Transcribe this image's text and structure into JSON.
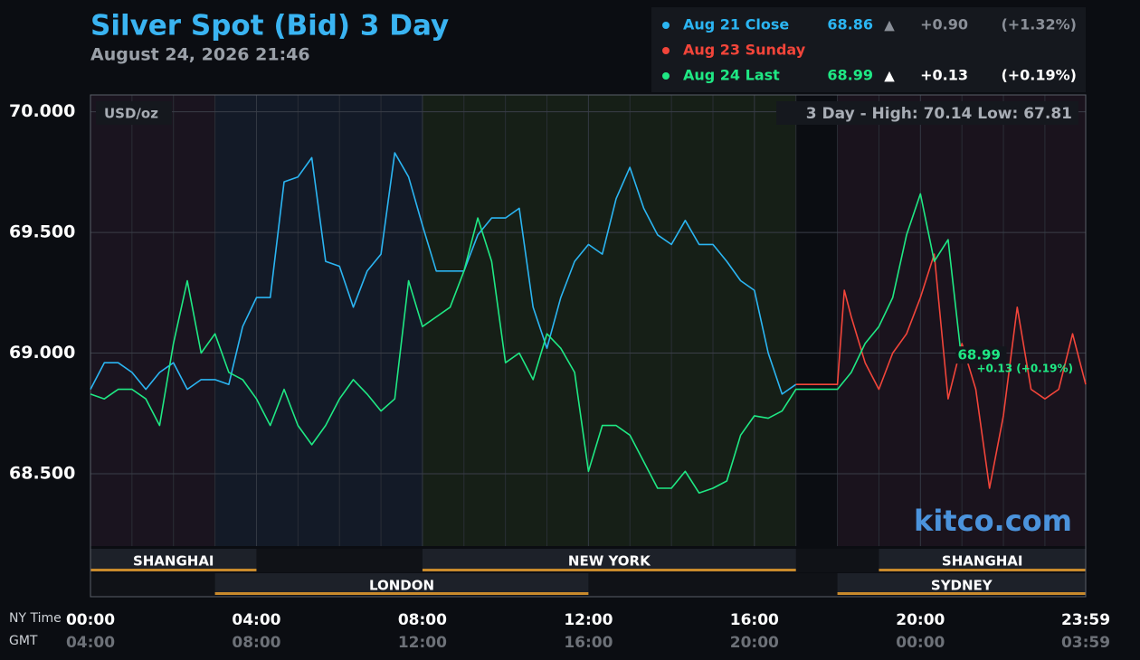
{
  "chart_data": {
    "type": "line",
    "title": "Silver Spot (Bid) 3 Day",
    "subtitle": "August 24, 2026 21:46",
    "y_unit": "USD/oz",
    "high_low": "3 Day - High: 70.14  Low: 67.81",
    "brand": "kitco.com",
    "last_change": "+0.13 (+0.19%)",
    "xlabel": "NY Time",
    "x2label": "GMT",
    "xlim": [
      0,
      1439
    ],
    "xticks": [
      {
        "value": 0,
        "label": "00:00"
      },
      {
        "value": 240,
        "label": "04:00"
      },
      {
        "value": 480,
        "label": "08:00"
      },
      {
        "value": 720,
        "label": "12:00"
      },
      {
        "value": 960,
        "label": "16:00"
      },
      {
        "value": 1200,
        "label": "20:00"
      },
      {
        "value": 1439,
        "label": "23:59"
      }
    ],
    "x2ticks": [
      {
        "value": 0,
        "label": "04:00"
      },
      {
        "value": 240,
        "label": "08:00"
      },
      {
        "value": 480,
        "label": "12:00"
      },
      {
        "value": 720,
        "label": "16:00"
      },
      {
        "value": 960,
        "label": "20:00"
      },
      {
        "value": 1200,
        "label": "00:00"
      },
      {
        "value": 1439,
        "label": "03:59"
      }
    ],
    "x_minor_ticks": [
      60,
      120,
      180,
      300,
      360,
      420,
      540,
      600,
      660,
      780,
      840,
      900,
      1020,
      1080,
      1140,
      1260,
      1320,
      1380
    ],
    "ylim": [
      68.2,
      70.07
    ],
    "yticks": [
      {
        "value": 70,
        "label": "70.000"
      },
      {
        "value": 69.5,
        "label": "69.500"
      },
      {
        "value": 69,
        "label": "69.000"
      },
      {
        "value": 68.5,
        "label": "68.500"
      }
    ],
    "grid": true,
    "regions": [
      {
        "start": 0,
        "end": 180,
        "color": "#1a141f"
      },
      {
        "start": 180,
        "end": 480,
        "color": "#131a27"
      },
      {
        "start": 480,
        "end": 1020,
        "color": "#161f17"
      },
      {
        "start": 1080,
        "end": 1439,
        "color": "#1a131d"
      }
    ],
    "sessions": {
      "upper": [
        {
          "name": "SHANGHAI",
          "start": 0,
          "end": 240
        },
        {
          "name": "NEW YORK",
          "start": 480,
          "end": 1020
        },
        {
          "name": "SHANGHAI",
          "start": 1140,
          "end": 1439
        }
      ],
      "lower": [
        {
          "name": "LONDON",
          "start": 180,
          "end": 720
        },
        {
          "name": "SYDNEY",
          "start": 1080,
          "end": 1439
        }
      ]
    },
    "session_color": "#c98a2c",
    "series": [
      {
        "name": "Aug 21 Close",
        "color": "#2bb5f2",
        "last": 68.86,
        "arrow": "▲",
        "change": "+0.90",
        "change_pct": "(+1.32%)",
        "change_color": "#8a8f98",
        "x": [
          0,
          20,
          40,
          60,
          80,
          100,
          120,
          140,
          160,
          180,
          200,
          220,
          240,
          260,
          280,
          300,
          320,
          340,
          360,
          380,
          400,
          420,
          440,
          460,
          480,
          500,
          520,
          540,
          560,
          580,
          600,
          620,
          640,
          660,
          680,
          700,
          720,
          740,
          760,
          780,
          800,
          820,
          840,
          860,
          880,
          900,
          920,
          940,
          960,
          980,
          1000,
          1020
        ],
        "values": [
          68.85,
          68.96,
          68.96,
          68.92,
          68.85,
          68.92,
          68.96,
          68.85,
          68.89,
          68.89,
          68.87,
          69.11,
          69.23,
          69.23,
          69.71,
          69.73,
          69.81,
          69.38,
          69.36,
          69.19,
          69.34,
          69.41,
          69.83,
          69.73,
          69.53,
          69.34,
          69.34,
          69.34,
          69.49,
          69.56,
          69.56,
          69.6,
          69.19,
          69.02,
          69.23,
          69.38,
          69.45,
          69.41,
          69.64,
          69.77,
          69.6,
          69.49,
          69.45,
          69.55,
          69.45,
          69.45,
          69.38,
          69.3,
          69.26,
          69.0,
          68.83,
          68.87
        ]
      },
      {
        "name": "Aug 23 Sunday",
        "color": "#f2453a",
        "x": [
          1020,
          1040,
          1060,
          1080,
          1090,
          1100,
          1120,
          1140,
          1160,
          1180,
          1200,
          1220,
          1240,
          1260,
          1280,
          1300,
          1320,
          1340,
          1360,
          1380,
          1400,
          1420,
          1439
        ],
        "values": [
          68.87,
          68.87,
          68.87,
          68.87,
          69.26,
          69.15,
          68.96,
          68.85,
          69.0,
          69.08,
          69.23,
          69.41,
          68.81,
          69.04,
          68.85,
          68.44,
          68.74,
          69.19,
          68.85,
          68.81,
          68.85,
          69.08,
          68.87
        ]
      },
      {
        "name": "Aug 24 Last",
        "color": "#1fe884",
        "last": 68.99,
        "arrow": "▲",
        "change": "+0.13",
        "change_pct": "(+0.19%)",
        "change_color": "#ffffff",
        "x": [
          0,
          20,
          40,
          60,
          80,
          100,
          120,
          140,
          160,
          180,
          200,
          220,
          240,
          260,
          280,
          300,
          320,
          340,
          360,
          380,
          400,
          420,
          440,
          460,
          480,
          500,
          520,
          540,
          560,
          580,
          600,
          620,
          640,
          660,
          680,
          700,
          720,
          740,
          760,
          780,
          800,
          820,
          840,
          860,
          880,
          900,
          920,
          940,
          960,
          980,
          1000,
          1020,
          1040,
          1060,
          1080,
          1100,
          1120,
          1140,
          1160,
          1180,
          1200,
          1220,
          1240,
          1260,
          1280
        ],
        "values": [
          68.83,
          68.81,
          68.85,
          68.85,
          68.81,
          68.7,
          69.04,
          69.3,
          69.0,
          69.08,
          68.92,
          68.89,
          68.81,
          68.7,
          68.85,
          68.7,
          68.62,
          68.7,
          68.81,
          68.89,
          68.83,
          68.76,
          68.81,
          69.3,
          69.11,
          69.15,
          69.19,
          69.34,
          69.56,
          69.38,
          68.96,
          69.0,
          68.89,
          69.08,
          69.02,
          68.92,
          68.51,
          68.7,
          68.7,
          68.66,
          68.55,
          68.44,
          68.44,
          68.51,
          68.42,
          68.44,
          68.47,
          68.66,
          68.74,
          68.73,
          68.76,
          68.85,
          68.85,
          68.85,
          68.85,
          68.92,
          69.04,
          69.11,
          69.23,
          69.49,
          69.66,
          69.38,
          69.47,
          68.96,
          68.99
        ]
      }
    ]
  }
}
